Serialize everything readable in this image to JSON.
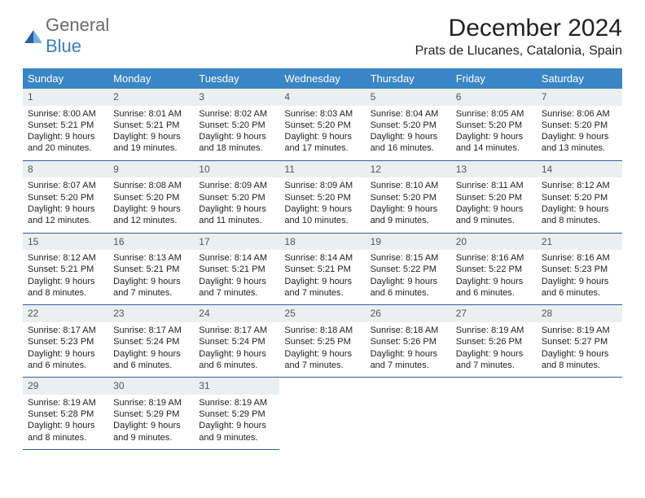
{
  "branding": {
    "general": "General",
    "blue": "Blue"
  },
  "title": "December 2024",
  "location": "Prats de Llucanes, Catalonia, Spain",
  "colors": {
    "header_band": "#3a85c6",
    "daynum_bg": "#eceff1",
    "rule": "#2f5f9a",
    "logo_general": "#6a6a6a",
    "logo_blue": "#3a7fbf"
  },
  "weekdays": [
    "Sunday",
    "Monday",
    "Tuesday",
    "Wednesday",
    "Thursday",
    "Friday",
    "Saturday"
  ],
  "weeks": [
    [
      {
        "d": "1",
        "sr": "8:00 AM",
        "ss": "5:21 PM",
        "dl": "9 hours and 20 minutes."
      },
      {
        "d": "2",
        "sr": "8:01 AM",
        "ss": "5:21 PM",
        "dl": "9 hours and 19 minutes."
      },
      {
        "d": "3",
        "sr": "8:02 AM",
        "ss": "5:20 PM",
        "dl": "9 hours and 18 minutes."
      },
      {
        "d": "4",
        "sr": "8:03 AM",
        "ss": "5:20 PM",
        "dl": "9 hours and 17 minutes."
      },
      {
        "d": "5",
        "sr": "8:04 AM",
        "ss": "5:20 PM",
        "dl": "9 hours and 16 minutes."
      },
      {
        "d": "6",
        "sr": "8:05 AM",
        "ss": "5:20 PM",
        "dl": "9 hours and 14 minutes."
      },
      {
        "d": "7",
        "sr": "8:06 AM",
        "ss": "5:20 PM",
        "dl": "9 hours and 13 minutes."
      }
    ],
    [
      {
        "d": "8",
        "sr": "8:07 AM",
        "ss": "5:20 PM",
        "dl": "9 hours and 12 minutes."
      },
      {
        "d": "9",
        "sr": "8:08 AM",
        "ss": "5:20 PM",
        "dl": "9 hours and 12 minutes."
      },
      {
        "d": "10",
        "sr": "8:09 AM",
        "ss": "5:20 PM",
        "dl": "9 hours and 11 minutes."
      },
      {
        "d": "11",
        "sr": "8:09 AM",
        "ss": "5:20 PM",
        "dl": "9 hours and 10 minutes."
      },
      {
        "d": "12",
        "sr": "8:10 AM",
        "ss": "5:20 PM",
        "dl": "9 hours and 9 minutes."
      },
      {
        "d": "13",
        "sr": "8:11 AM",
        "ss": "5:20 PM",
        "dl": "9 hours and 9 minutes."
      },
      {
        "d": "14",
        "sr": "8:12 AM",
        "ss": "5:20 PM",
        "dl": "9 hours and 8 minutes."
      }
    ],
    [
      {
        "d": "15",
        "sr": "8:12 AM",
        "ss": "5:21 PM",
        "dl": "9 hours and 8 minutes."
      },
      {
        "d": "16",
        "sr": "8:13 AM",
        "ss": "5:21 PM",
        "dl": "9 hours and 7 minutes."
      },
      {
        "d": "17",
        "sr": "8:14 AM",
        "ss": "5:21 PM",
        "dl": "9 hours and 7 minutes."
      },
      {
        "d": "18",
        "sr": "8:14 AM",
        "ss": "5:21 PM",
        "dl": "9 hours and 7 minutes."
      },
      {
        "d": "19",
        "sr": "8:15 AM",
        "ss": "5:22 PM",
        "dl": "9 hours and 6 minutes."
      },
      {
        "d": "20",
        "sr": "8:16 AM",
        "ss": "5:22 PM",
        "dl": "9 hours and 6 minutes."
      },
      {
        "d": "21",
        "sr": "8:16 AM",
        "ss": "5:23 PM",
        "dl": "9 hours and 6 minutes."
      }
    ],
    [
      {
        "d": "22",
        "sr": "8:17 AM",
        "ss": "5:23 PM",
        "dl": "9 hours and 6 minutes."
      },
      {
        "d": "23",
        "sr": "8:17 AM",
        "ss": "5:24 PM",
        "dl": "9 hours and 6 minutes."
      },
      {
        "d": "24",
        "sr": "8:17 AM",
        "ss": "5:24 PM",
        "dl": "9 hours and 6 minutes."
      },
      {
        "d": "25",
        "sr": "8:18 AM",
        "ss": "5:25 PM",
        "dl": "9 hours and 7 minutes."
      },
      {
        "d": "26",
        "sr": "8:18 AM",
        "ss": "5:26 PM",
        "dl": "9 hours and 7 minutes."
      },
      {
        "d": "27",
        "sr": "8:19 AM",
        "ss": "5:26 PM",
        "dl": "9 hours and 7 minutes."
      },
      {
        "d": "28",
        "sr": "8:19 AM",
        "ss": "5:27 PM",
        "dl": "9 hours and 8 minutes."
      }
    ],
    [
      {
        "d": "29",
        "sr": "8:19 AM",
        "ss": "5:28 PM",
        "dl": "9 hours and 8 minutes."
      },
      {
        "d": "30",
        "sr": "8:19 AM",
        "ss": "5:29 PM",
        "dl": "9 hours and 9 minutes."
      },
      {
        "d": "31",
        "sr": "8:19 AM",
        "ss": "5:29 PM",
        "dl": "9 hours and 9 minutes."
      },
      null,
      null,
      null,
      null
    ]
  ],
  "labels": {
    "sunrise_prefix": "Sunrise: ",
    "sunset_prefix": "Sunset: ",
    "daylight_prefix": "Daylight: "
  }
}
